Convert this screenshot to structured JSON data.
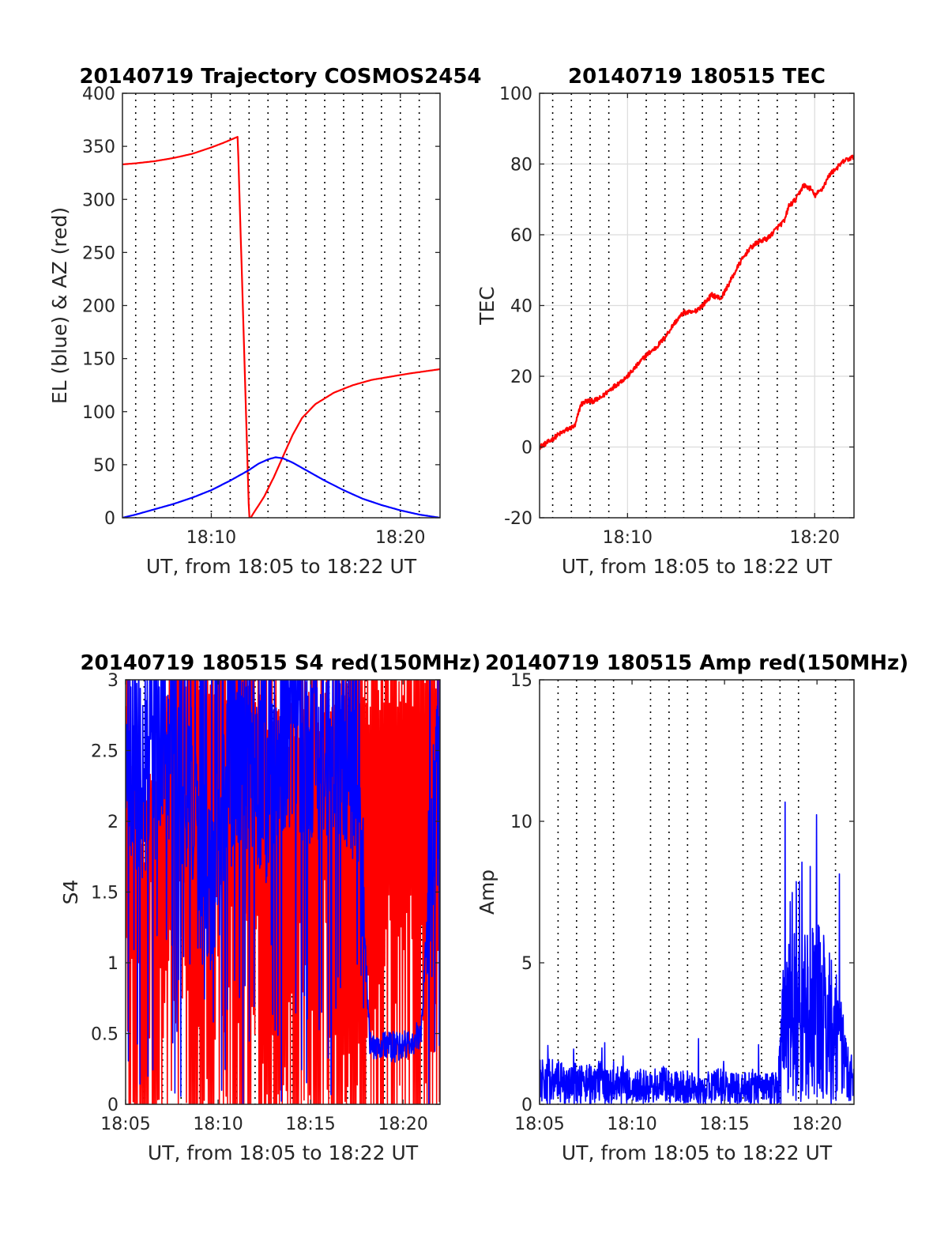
{
  "chart_data": [
    {
      "id": "traj",
      "type": "line",
      "title": "20140719 Trajectory COSMOS2454",
      "xlabel": "UT, from 18:05 to 18:22 UT",
      "ylabel": "EL (blue) & AZ (red)",
      "xlim": [
        5.3,
        22.1
      ],
      "ylim": [
        0,
        400
      ],
      "xticks": [
        10,
        20
      ],
      "xtick_labels": [
        "18:10",
        "18:20"
      ],
      "yticks": [
        0,
        50,
        100,
        150,
        200,
        250,
        300,
        350,
        400
      ],
      "ytick_labels": [
        "0",
        "50",
        "100",
        "150",
        "200",
        "250",
        "300",
        "350",
        "400"
      ],
      "vgrid_minutes": [
        6,
        7,
        8,
        9,
        10,
        11,
        12,
        13,
        14,
        15,
        16,
        17,
        18,
        19,
        20,
        21
      ],
      "hgrid": false,
      "series": [
        {
          "color": "#ff0000",
          "x": [
            5.3,
            6.0,
            7.0,
            8.0,
            9.0,
            10.0,
            10.6,
            11.0,
            11.4,
            12.0,
            12.1,
            12.15,
            12.8,
            13.3,
            13.8,
            14.3,
            14.8,
            15.5,
            16.5,
            17.5,
            18.5,
            19.5,
            20.5,
            21.3,
            22.1
          ],
          "y": [
            333,
            334,
            336,
            339,
            343,
            349,
            353,
            356,
            359,
            0,
            0,
            2,
            20,
            38,
            58,
            78,
            94,
            107,
            118,
            125,
            130,
            133,
            136,
            138,
            140
          ]
        },
        {
          "color": "#0000ff",
          "x": [
            5.3,
            6.0,
            7.0,
            8.0,
            9.0,
            10.0,
            11.0,
            12.0,
            12.5,
            13.0,
            13.4,
            13.8,
            14.3,
            15.0,
            16.0,
            17.0,
            18.0,
            19.0,
            20.0,
            21.0,
            22.1
          ],
          "y": [
            0,
            3,
            8,
            13,
            19,
            26,
            35,
            45,
            51,
            55,
            57,
            56,
            52,
            45,
            35,
            26,
            18,
            12,
            7,
            3,
            0
          ]
        }
      ]
    },
    {
      "id": "tec",
      "type": "line",
      "title": "20140719 180515 TEC",
      "xlabel": "UT, from 18:05 to 18:22 UT",
      "ylabel": "TEC",
      "xlim": [
        5.3,
        22.1
      ],
      "ylim": [
        -20,
        100
      ],
      "xticks": [
        10,
        20
      ],
      "xtick_labels": [
        "18:10",
        "18:20"
      ],
      "yticks": [
        -20,
        0,
        20,
        40,
        60,
        80,
        100
      ],
      "ytick_labels": [
        "-20",
        "0",
        "20",
        "40",
        "60",
        "80",
        "100"
      ],
      "vgrid_minutes": [
        6,
        7,
        8,
        9,
        11,
        12,
        13,
        14,
        15,
        16,
        17,
        18,
        19,
        21
      ],
      "hgrid": true,
      "series": [
        {
          "color": "#ff0000",
          "x": [
            5.3,
            5.8,
            6.3,
            6.8,
            7.2,
            7.5,
            7.8,
            8.2,
            8.6,
            9.0,
            9.5,
            10.0,
            10.5,
            11.0,
            11.5,
            12.0,
            12.5,
            13.0,
            13.5,
            14.0,
            14.5,
            15.0,
            15.5,
            16.0,
            16.5,
            17.0,
            17.5,
            18.0,
            18.4,
            18.6,
            19.0,
            19.4,
            19.8,
            20.0,
            20.4,
            20.8,
            21.2,
            21.6,
            22.1
          ],
          "y": [
            0,
            1.5,
            3.5,
            5,
            6,
            12,
            13,
            13,
            14,
            16,
            18,
            20,
            23,
            26,
            28,
            31,
            35,
            38,
            38,
            40,
            43,
            42,
            47,
            52,
            56,
            58,
            59,
            62,
            64,
            68,
            70,
            74,
            73,
            71,
            73,
            77,
            79,
            81,
            82
          ]
        }
      ]
    },
    {
      "id": "s4",
      "type": "line",
      "title": "20140719 180515 S4 red(150MHz)",
      "xlabel": "UT, from 18:05 to 18:22 UT",
      "ylabel": "S4",
      "xlim": [
        5,
        22
      ],
      "ylim": [
        0,
        3
      ],
      "xticks": [
        5,
        10,
        15,
        20
      ],
      "xtick_labels": [
        "18:05",
        "18:10",
        "18:15",
        "18:20"
      ],
      "yticks": [
        0,
        0.5,
        1,
        1.5,
        2,
        2.5,
        3
      ],
      "ytick_labels": [
        "0",
        "0.5",
        "1",
        "1.5",
        "2",
        "2.5",
        "3"
      ],
      "vgrid_minutes": [
        6,
        7,
        8,
        9,
        11,
        12,
        13,
        14,
        16,
        17,
        18,
        19,
        21
      ],
      "hgrid": false,
      "series": [
        {
          "color": "#ff0000",
          "noise": "spiky",
          "x": [
            5.0,
            5.5,
            6.0,
            6.5,
            7.0,
            7.5,
            8.0,
            8.5,
            9.0,
            9.5,
            10.0,
            10.5,
            11.0,
            11.5,
            12.0,
            12.5,
            13.0,
            13.5,
            14.0,
            14.5,
            15.0,
            15.5,
            16.0,
            16.5,
            17.0,
            17.5,
            18.0,
            18.5,
            19.0,
            19.5,
            20.0,
            20.5,
            21.0,
            21.5,
            22.0
          ],
          "y": [
            2.6,
            2.0,
            1.6,
            1.8,
            2.5,
            2.6,
            2.8,
            2.9,
            2.9,
            2.8,
            2.9,
            2.8,
            2.7,
            2.8,
            2.8,
            2.5,
            2.6,
            2.4,
            2.5,
            2.6,
            2.6,
            2.5,
            2.6,
            2.6,
            2.7,
            2.8,
            2.6,
            2.7,
            2.8,
            2.8,
            2.8,
            2.8,
            2.9,
            2.8,
            2.6
          ]
        },
        {
          "color": "#0000ff",
          "noise": "band",
          "x": [
            5.0,
            5.5,
            6.0,
            6.5,
            7.0,
            7.5,
            8.0,
            8.5,
            9.0,
            9.5,
            10.0,
            10.5,
            11.0,
            11.5,
            12.0,
            12.5,
            13.0,
            13.5,
            14.0,
            14.5,
            15.0,
            15.5,
            16.0,
            16.5,
            17.0,
            17.5,
            17.9,
            18.2,
            18.6,
            19.0,
            19.5,
            20.0,
            20.5,
            21.0,
            21.5,
            22.0
          ],
          "y": [
            2.5,
            2.3,
            2.2,
            2.4,
            2.5,
            2.5,
            2.4,
            2.2,
            1.7,
            1.5,
            1.7,
            2.2,
            2.4,
            2.5,
            2.3,
            2.2,
            2.4,
            2.6,
            2.6,
            2.5,
            2.5,
            2.5,
            2.6,
            2.6,
            2.4,
            2.1,
            1.2,
            0.42,
            0.4,
            0.4,
            0.38,
            0.4,
            0.4,
            0.5,
            1.8,
            2.4
          ]
        }
      ]
    },
    {
      "id": "amp",
      "type": "line",
      "title": "20140719 180515 Amp red(150MHz)",
      "xlabel": "UT, from 18:05 to 18:22 UT",
      "ylabel": "Amp",
      "xlim": [
        5,
        22
      ],
      "ylim": [
        0,
        15
      ],
      "xticks": [
        5,
        10,
        15,
        20
      ],
      "xtick_labels": [
        "18:05",
        "18:10",
        "18:15",
        "18:20"
      ],
      "yticks": [
        0,
        5,
        10,
        15
      ],
      "ytick_labels": [
        "0",
        "5",
        "10",
        "15"
      ],
      "vgrid_minutes": [
        6,
        7,
        8,
        9,
        11,
        12,
        13,
        14,
        16,
        17,
        18,
        19,
        21
      ],
      "hgrid": false,
      "series": [
        {
          "color": "#0000ff",
          "noise": "amp",
          "x": [
            5.0,
            5.5,
            6.0,
            6.5,
            7.0,
            7.5,
            8.0,
            8.5,
            9.0,
            9.5,
            10.0,
            10.5,
            11.0,
            11.5,
            12.0,
            12.5,
            13.0,
            13.5,
            14.0,
            14.5,
            15.0,
            15.5,
            16.0,
            16.5,
            17.0,
            17.5,
            17.9,
            18.1,
            18.5,
            19.0,
            19.5,
            20.0,
            20.5,
            21.0,
            21.5,
            22.0
          ],
          "y": [
            1.2,
            1.2,
            1.1,
            1.0,
            1.1,
            1.0,
            1.2,
            1.0,
            0.9,
            1.0,
            0.8,
            0.9,
            0.8,
            1.0,
            0.9,
            0.8,
            0.9,
            0.8,
            0.8,
            0.9,
            0.9,
            0.8,
            0.8,
            0.9,
            0.8,
            0.8,
            0.9,
            3.5,
            4.5,
            4.2,
            4.8,
            4.6,
            4.2,
            3.6,
            2.0,
            1.2
          ]
        }
      ]
    }
  ]
}
